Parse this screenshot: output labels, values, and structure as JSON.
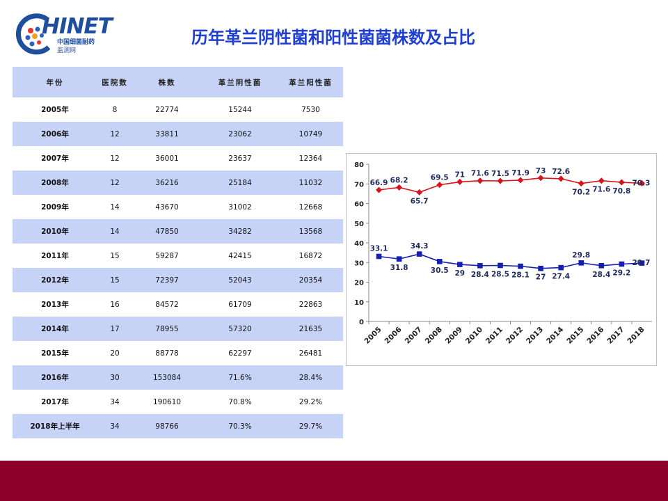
{
  "logo": {
    "text": "HINET",
    "sub1": "中国细菌耐药",
    "sub2": "监测网"
  },
  "title": "历年革兰阴性菌和阳性菌菌株数及占比",
  "colors": {
    "gram_negative": "#d7141b",
    "gram_positive": "#1620b0",
    "row_alt": "#c6d3f7",
    "footer": "#8b0029",
    "title": "#1f3fd0"
  },
  "table": {
    "headers": [
      "年份",
      "医院数",
      "株数",
      "革兰阴性菌",
      "革兰阳性菌"
    ],
    "rows": [
      [
        "2005年",
        "8",
        "22774",
        "15244",
        "7530"
      ],
      [
        "2006年",
        "12",
        "33811",
        "23062",
        "10749"
      ],
      [
        "2007年",
        "12",
        "36001",
        "23637",
        "12364"
      ],
      [
        "2008年",
        "12",
        "36216",
        "25184",
        "11032"
      ],
      [
        "2009年",
        "14",
        "43670",
        "31002",
        "12668"
      ],
      [
        "2010年",
        "14",
        "47850",
        "34282",
        "13568"
      ],
      [
        "2011年",
        "15",
        "59287",
        "42415",
        "16872"
      ],
      [
        "2012年",
        "15",
        "72397",
        "52043",
        "20354"
      ],
      [
        "2013年",
        "16",
        "84572",
        "61709",
        "22863"
      ],
      [
        "2014年",
        "17",
        "78955",
        "57320",
        "21635"
      ],
      [
        "2015年",
        "20",
        "88778",
        "62297",
        "26481"
      ],
      [
        "2016年",
        "30",
        "153084",
        "71.6%",
        "28.4%"
      ],
      [
        "2017年",
        "34",
        "190610",
        "70.8%",
        "29.2%"
      ],
      [
        "2018年上半年",
        "34",
        "98766",
        "70.3%",
        "29.7%"
      ]
    ]
  },
  "chart_data": {
    "type": "line",
    "x": [
      "2005",
      "2006",
      "2007",
      "2008",
      "2009",
      "2010",
      "2011",
      "2012",
      "2013",
      "2014",
      "2015",
      "2016",
      "2017",
      "2018"
    ],
    "ylim": [
      0,
      80
    ],
    "yticks": [
      0,
      10,
      20,
      30,
      40,
      50,
      60,
      70,
      80
    ],
    "grid": false,
    "series": [
      {
        "values": [
          66.9,
          68.2,
          65.7,
          69.5,
          71,
          71.6,
          71.5,
          71.9,
          73,
          72.6,
          70.2,
          71.6,
          70.8,
          70.3
        ],
        "labels": [
          "66.9",
          "68.2",
          "65.7",
          "69.5",
          "71",
          "71.6",
          "71.5",
          "71.9",
          "73",
          "72.6",
          "70.2",
          "71.6",
          "70.8",
          "70.3"
        ],
        "color": "#d7141b",
        "marker": "diamond"
      },
      {
        "values": [
          33.1,
          31.8,
          34.3,
          30.5,
          29,
          28.4,
          28.5,
          28.1,
          27,
          27.4,
          29.8,
          28.4,
          29.2,
          29.7
        ],
        "labels": [
          "33.1",
          "31.8",
          "34.3",
          "30.5",
          "29",
          "28.4",
          "28.5",
          "28.1",
          "27",
          "27.4",
          "29.8",
          "28.4",
          "29.2",
          "29.7"
        ],
        "color": "#1620b0",
        "marker": "square"
      }
    ]
  }
}
